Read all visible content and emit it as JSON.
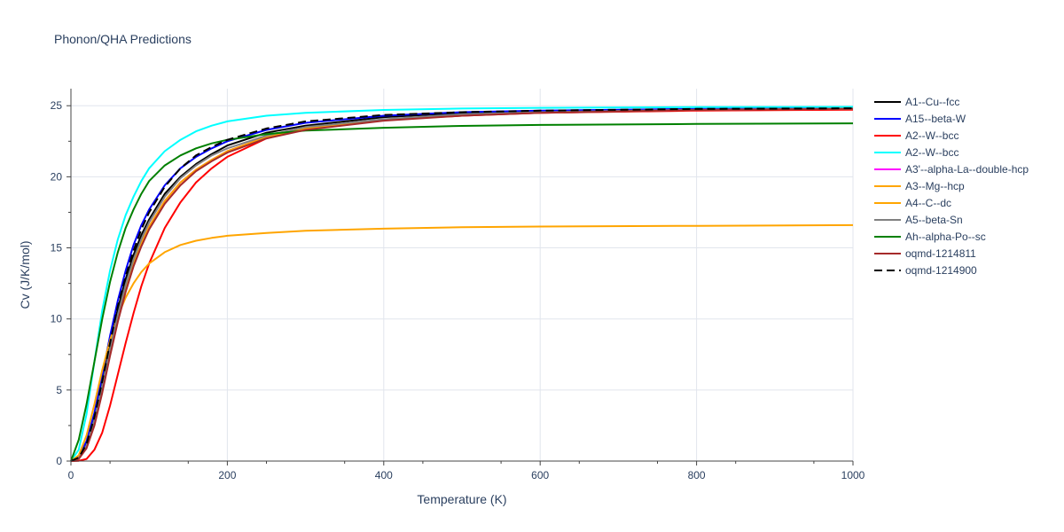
{
  "chart_data": {
    "type": "line",
    "title": "Phonon/QHA Predictions",
    "xlabel": "Temperature (K)",
    "ylabel": "Cv (J/K/mol)",
    "xlim": [
      0,
      1000
    ],
    "ylim": [
      0,
      26.2
    ],
    "xticks": [
      0,
      200,
      400,
      600,
      800,
      1000
    ],
    "yticks": [
      0,
      5,
      10,
      15,
      20,
      25
    ],
    "grid": true,
    "legend_position": "right",
    "series": [
      {
        "name": "A1--Cu--fcc",
        "color": "#000000",
        "dash": "solid",
        "x": [
          0,
          10,
          20,
          30,
          40,
          50,
          60,
          70,
          80,
          90,
          100,
          120,
          140,
          160,
          180,
          200,
          250,
          300,
          400,
          500,
          600,
          800,
          1000
        ],
        "y": [
          0,
          0.3,
          1.3,
          3.2,
          5.7,
          8.3,
          10.7,
          12.8,
          14.5,
          15.9,
          17.0,
          18.8,
          20.0,
          20.9,
          21.6,
          22.2,
          23.1,
          23.6,
          24.2,
          24.5,
          24.6,
          24.75,
          24.8
        ]
      },
      {
        "name": "A15--beta-W",
        "color": "#0000ff",
        "dash": "solid",
        "x": [
          0,
          10,
          20,
          30,
          40,
          50,
          60,
          70,
          80,
          90,
          100,
          120,
          140,
          160,
          180,
          200,
          250,
          300,
          400,
          500,
          600,
          800,
          1000
        ],
        "y": [
          0,
          0.3,
          1.4,
          3.4,
          6.0,
          8.8,
          11.3,
          13.4,
          15.2,
          16.6,
          17.7,
          19.4,
          20.6,
          21.4,
          22.0,
          22.5,
          23.3,
          23.8,
          24.3,
          24.55,
          24.65,
          24.78,
          24.82
        ]
      },
      {
        "name": "A2--W--bcc",
        "color": "#ff0000",
        "dash": "solid",
        "x": [
          0,
          10,
          20,
          30,
          40,
          50,
          60,
          70,
          80,
          90,
          100,
          120,
          140,
          160,
          180,
          200,
          250,
          300,
          400,
          500,
          600,
          800,
          1000
        ],
        "y": [
          0,
          0.02,
          0.15,
          0.8,
          2.0,
          3.9,
          6.1,
          8.3,
          10.4,
          12.3,
          13.9,
          16.4,
          18.2,
          19.6,
          20.6,
          21.4,
          22.7,
          23.4,
          24.0,
          24.3,
          24.5,
          24.65,
          24.72
        ]
      },
      {
        "name": "A2--W--bcc",
        "color": "#00ffff",
        "dash": "solid",
        "x": [
          0,
          10,
          20,
          30,
          40,
          50,
          60,
          70,
          80,
          90,
          100,
          120,
          140,
          160,
          180,
          200,
          250,
          300,
          400,
          500,
          600,
          800,
          1000
        ],
        "y": [
          0,
          0.8,
          3.3,
          7.0,
          10.6,
          13.4,
          15.6,
          17.3,
          18.6,
          19.7,
          20.6,
          21.8,
          22.6,
          23.2,
          23.6,
          23.9,
          24.3,
          24.5,
          24.7,
          24.8,
          24.85,
          24.9,
          24.92
        ]
      },
      {
        "name": "A3'--alpha-La--double-hcp",
        "color": "#ff00ff",
        "dash": "solid",
        "x": [
          0,
          10,
          20,
          30,
          40,
          50,
          60,
          70,
          80,
          90,
          100,
          120,
          140,
          160,
          180,
          200,
          250,
          300,
          400,
          500,
          600,
          800,
          1000
        ],
        "y": [
          0,
          0.2,
          1.0,
          2.7,
          5.0,
          7.6,
          10.0,
          12.1,
          13.9,
          15.3,
          16.5,
          18.3,
          19.6,
          20.5,
          21.2,
          21.8,
          22.8,
          23.4,
          24.0,
          24.35,
          24.5,
          24.7,
          24.78
        ]
      },
      {
        "name": "A3--Mg--hcp",
        "color": "#ffa500",
        "dash": "solid",
        "x": [
          0,
          10,
          20,
          30,
          40,
          50,
          60,
          70,
          80,
          90,
          100,
          120,
          140,
          160,
          180,
          200,
          250,
          300,
          400,
          500,
          600,
          800,
          1000
        ],
        "y": [
          0,
          0.2,
          1.0,
          2.7,
          5.0,
          7.6,
          10.0,
          12.1,
          13.9,
          15.3,
          16.5,
          18.3,
          19.6,
          20.5,
          21.2,
          21.8,
          22.8,
          23.4,
          24.0,
          24.35,
          24.5,
          24.7,
          24.78
        ]
      },
      {
        "name": "A4--C--dc",
        "color": "#ffa500",
        "dash": "solid",
        "x": [
          0,
          10,
          20,
          30,
          40,
          50,
          60,
          70,
          80,
          90,
          100,
          120,
          140,
          160,
          180,
          200,
          250,
          300,
          400,
          500,
          600,
          800,
          1000
        ],
        "y": [
          0,
          0.4,
          1.8,
          4.0,
          6.4,
          8.5,
          10.2,
          11.5,
          12.5,
          13.3,
          13.9,
          14.7,
          15.2,
          15.5,
          15.7,
          15.85,
          16.05,
          16.2,
          16.35,
          16.45,
          16.5,
          16.55,
          16.6
        ]
      },
      {
        "name": "A5--beta-Sn",
        "color": "#808080",
        "dash": "solid",
        "x": [
          0,
          10,
          20,
          30,
          40,
          50,
          60,
          70,
          80,
          90,
          100,
          120,
          140,
          160,
          180,
          200,
          250,
          300,
          400,
          500,
          600,
          800,
          1000
        ],
        "y": [
          0,
          0.2,
          1.1,
          2.9,
          5.3,
          7.9,
          10.3,
          12.4,
          14.2,
          15.6,
          16.8,
          18.6,
          19.9,
          20.8,
          21.5,
          22.0,
          22.9,
          23.5,
          24.05,
          24.4,
          24.55,
          24.72,
          24.8
        ]
      },
      {
        "name": "Ah--alpha-Po--sc",
        "color": "#008000",
        "dash": "solid",
        "x": [
          0,
          10,
          20,
          30,
          40,
          50,
          60,
          70,
          80,
          90,
          100,
          120,
          140,
          160,
          180,
          200,
          250,
          300,
          400,
          500,
          600,
          800,
          1000
        ],
        "y": [
          0,
          1.5,
          4.0,
          7.0,
          10.0,
          12.6,
          14.7,
          16.4,
          17.7,
          18.8,
          19.7,
          20.8,
          21.5,
          22.0,
          22.35,
          22.6,
          23.0,
          23.25,
          23.45,
          23.58,
          23.65,
          23.72,
          23.76
        ]
      },
      {
        "name": "oqmd-1214811",
        "color": "#a52a2a",
        "dash": "solid",
        "x": [
          0,
          10,
          20,
          30,
          40,
          50,
          60,
          70,
          80,
          90,
          100,
          120,
          140,
          160,
          180,
          200,
          250,
          300,
          400,
          500,
          600,
          800,
          1000
        ],
        "y": [
          0,
          0.15,
          0.9,
          2.5,
          4.8,
          7.4,
          9.8,
          11.9,
          13.7,
          15.1,
          16.3,
          18.1,
          19.4,
          20.4,
          21.1,
          21.7,
          22.7,
          23.3,
          23.95,
          24.3,
          24.5,
          24.7,
          24.78
        ]
      },
      {
        "name": "oqmd-1214900",
        "color": "#000000",
        "dash": "dash",
        "x": [
          0,
          10,
          20,
          30,
          40,
          50,
          60,
          70,
          80,
          90,
          100,
          120,
          140,
          160,
          180,
          200,
          250,
          300,
          400,
          500,
          600,
          800,
          1000
        ],
        "y": [
          0,
          0.25,
          1.2,
          3.1,
          5.6,
          8.3,
          10.9,
          13.0,
          14.8,
          16.3,
          17.5,
          19.3,
          20.6,
          21.5,
          22.1,
          22.6,
          23.4,
          23.9,
          24.35,
          24.55,
          24.65,
          24.78,
          24.82
        ]
      }
    ]
  }
}
